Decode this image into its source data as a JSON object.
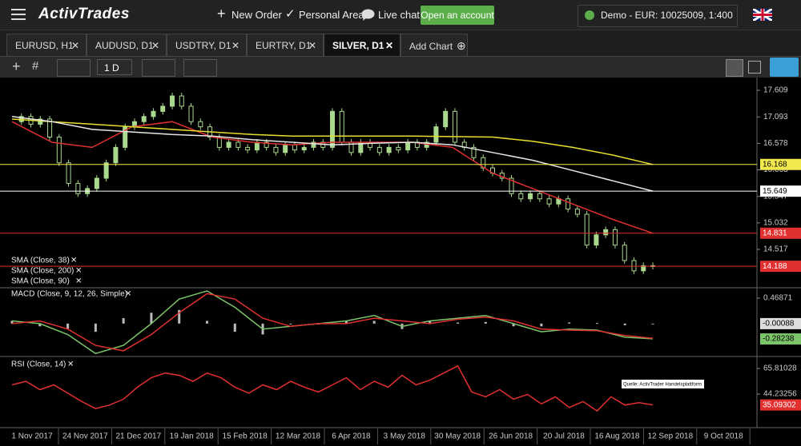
{
  "nav": {
    "logo": "ActivTrades",
    "new_order": "New Order",
    "personal_area": "Personal Area",
    "live_chat": "Live chat",
    "open_account": "Open an account",
    "account": "Demo - EUR: 10025009, 1:400"
  },
  "tabs": {
    "items": [
      "EURUSD, H1",
      "AUDUSD, D1",
      "USDTRY, D1",
      "EURTRY, D1",
      "SILVER, D1"
    ],
    "active": 4,
    "add": "Add Chart"
  },
  "toolbar": {
    "interval": "1 D"
  },
  "chart": {
    "price": {
      "ylim": [
        13.771,
        17.858
      ],
      "yticks": [
        17.609,
        17.093,
        16.578,
        16.063,
        15.547,
        15.032,
        14.517
      ],
      "candle_color": "#a9d88f",
      "close": [
        17.0,
        17.1,
        16.95,
        17.05,
        16.7,
        16.2,
        15.8,
        15.6,
        15.7,
        15.9,
        16.2,
        16.5,
        16.9,
        17.0,
        17.1,
        17.2,
        17.3,
        17.5,
        17.3,
        17.0,
        16.9,
        16.7,
        16.5,
        16.6,
        16.5,
        16.45,
        16.6,
        16.5,
        16.4,
        16.55,
        16.45,
        16.5,
        16.6,
        16.5,
        17.2,
        16.6,
        16.4,
        16.6,
        16.5,
        16.4,
        16.5,
        16.45,
        16.6,
        16.5,
        16.6,
        16.9,
        17.2,
        16.6,
        16.5,
        16.3,
        16.1,
        16.0,
        15.9,
        15.6,
        15.5,
        15.6,
        15.5,
        15.4,
        15.5,
        15.3,
        15.2,
        14.6,
        14.8,
        14.9,
        14.6,
        14.3,
        14.1,
        14.2,
        14.19
      ],
      "series": [
        {
          "name": "SMA (Close, 38)",
          "color": "#e03030",
          "values": [
            17.0,
            16.6,
            16.5,
            16.9,
            17.0,
            16.7,
            16.6,
            16.55,
            16.6,
            16.6,
            16.6,
            16.5,
            16.0,
            15.7,
            15.4,
            15.1,
            14.831
          ]
        },
        {
          "name": "SMA (Close, 200)",
          "color": "#e8e030",
          "values": [
            17.05,
            17.0,
            16.95,
            16.9,
            16.85,
            16.8,
            16.75,
            16.72,
            16.72,
            16.72,
            16.72,
            16.71,
            16.7,
            16.62,
            16.5,
            16.35,
            16.168
          ]
        },
        {
          "name": "SMA (Close, 90)",
          "color": "#e8e8e8",
          "values": [
            17.1,
            17.0,
            16.85,
            16.8,
            16.75,
            16.72,
            16.65,
            16.6,
            16.55,
            16.58,
            16.6,
            16.55,
            16.4,
            16.25,
            16.05,
            15.85,
            15.649
          ]
        }
      ],
      "price_labels": [
        {
          "value": 16.168,
          "color": "#f2e94e",
          "text_color": "#000000"
        },
        {
          "value": 15.649,
          "color": "#ffffff",
          "text_color": "#000000"
        },
        {
          "value": 14.831,
          "color": "#e03030",
          "text_color": "#ffffff"
        },
        {
          "value": 14.188,
          "color": "#e03030",
          "text_color": "#ffffff"
        }
      ]
    },
    "macd": {
      "title": "MACD (Close, 9, 12, 26, Simple)",
      "ylim": [
        -0.59,
        0.63
      ],
      "yticks": [
        0.46871
      ],
      "macd": [
        0.05,
        0.0,
        -0.2,
        -0.55,
        -0.4,
        0.0,
        0.45,
        0.6,
        0.3,
        -0.1,
        -0.05,
        0.0,
        0.05,
        0.15,
        -0.05,
        0.05,
        0.1,
        0.15,
        0.0,
        -0.15,
        -0.1,
        -0.12,
        -0.25,
        -0.28
      ],
      "signal": [
        0.0,
        0.05,
        -0.1,
        -0.4,
        -0.5,
        -0.2,
        0.2,
        0.55,
        0.45,
        0.1,
        -0.05,
        0.0,
        0.0,
        0.1,
        0.05,
        0.0,
        0.08,
        0.12,
        0.05,
        -0.1,
        -0.12,
        -0.13,
        -0.22,
        -0.27
      ],
      "histogram": [
        0.05,
        -0.05,
        -0.1,
        -0.15,
        0.1,
        0.2,
        0.25,
        0.05,
        -0.15,
        -0.2,
        0,
        0,
        0.05,
        0.05,
        -0.1,
        0.05,
        0.02,
        0.03,
        -0.05,
        -0.05,
        0.02,
        0.01,
        -0.03,
        -0.00088
      ],
      "macd_color": "#7cc46a",
      "signal_color": "#e03030",
      "histogram_color": "#bbbbbb",
      "price_labels": [
        {
          "value": -0.00088,
          "color": "#dddddd",
          "text_color": "#000000"
        },
        {
          "value": -0.28238,
          "color": "#7cc46a",
          "text_color": "#000000"
        }
      ]
    },
    "rsi": {
      "title": "RSI (Close, 14)",
      "ylim": [
        16,
        75.25
      ],
      "yticks": [
        65.81028,
        44.23256
      ],
      "color": "#e03030",
      "values": [
        52,
        55,
        48,
        52,
        45,
        38,
        32,
        35,
        40,
        50,
        58,
        62,
        60,
        55,
        62,
        58,
        50,
        45,
        52,
        48,
        55,
        50,
        46,
        52,
        58,
        48,
        55,
        50,
        60,
        52,
        56,
        62,
        68,
        46,
        42,
        48,
        40,
        44,
        36,
        42,
        33,
        38,
        30,
        42,
        35,
        37,
        35.09302
      ],
      "price_labels": [
        {
          "value": 35.09302,
          "color": "#e03030",
          "text_color": "#ffffff"
        }
      ],
      "annotation": "Quelle: ActivTrader Handelsplattform"
    },
    "x_labels": [
      "1 Nov 2017",
      "24 Nov 2017",
      "21 Dec 2017",
      "19 Jan 2018",
      "15 Feb 2018",
      "12 Mar 2018",
      "6 Apr 2018",
      "3 May 2018",
      "30 May 2018",
      "26 Jun 2018",
      "20 Jul 2018",
      "16 Aug 2018",
      "12 Sep 2018",
      "9 Oct 2018"
    ]
  }
}
